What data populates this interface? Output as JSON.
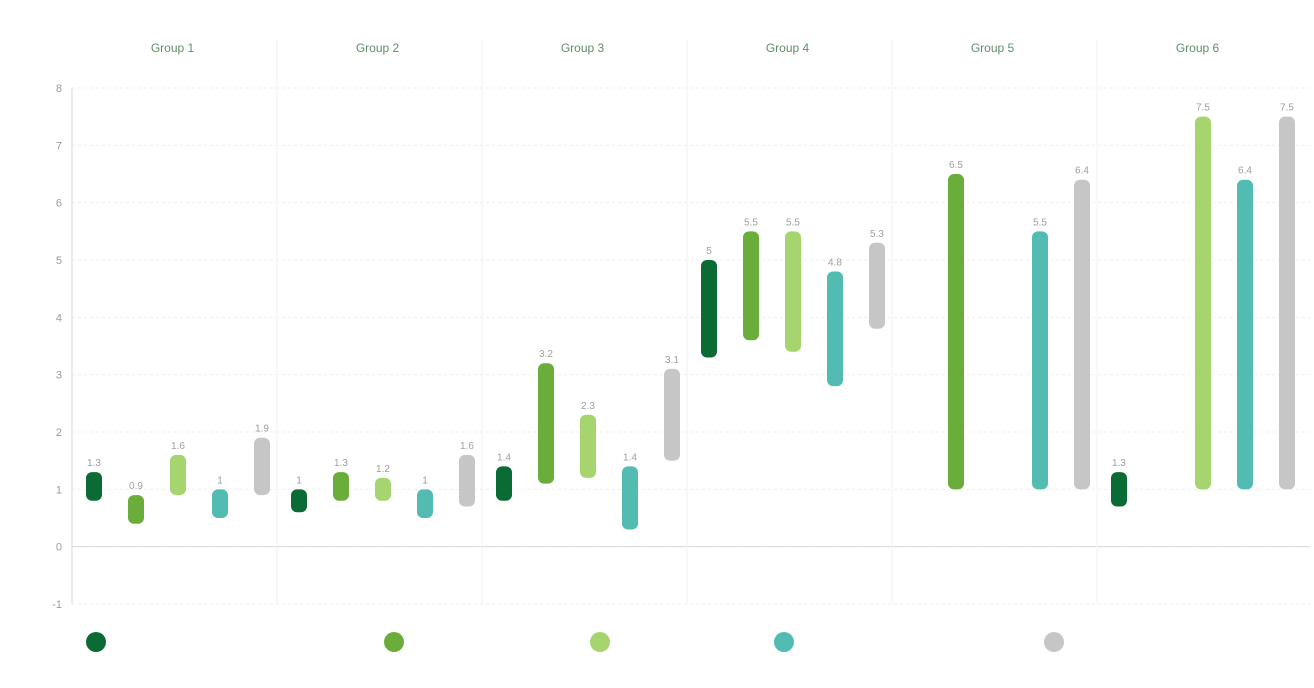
{
  "chart_data": {
    "type": "bar",
    "title": "",
    "xlabel": "",
    "ylabel": "",
    "ylim": [
      -1,
      8
    ],
    "yticks": [
      -1,
      0,
      1,
      2,
      3,
      4,
      5,
      6,
      7,
      8
    ],
    "grid": true,
    "legend_position": "bottom",
    "categories": [
      "Group 1",
      "Group 2",
      "Group 3",
      "Group 4",
      "Group 5",
      "Group 6"
    ],
    "series": [
      {
        "name": "",
        "color": "#0b6b35",
        "values": [
          [
            0.8,
            1.3
          ],
          [
            0.6,
            1.0
          ],
          [
            0.8,
            1.4
          ],
          [
            3.3,
            5.0
          ],
          null,
          [
            0.7,
            1.3
          ]
        ]
      },
      {
        "name": "",
        "color": "#6aad3a",
        "values": [
          [
            0.4,
            0.9
          ],
          [
            0.8,
            1.3
          ],
          [
            1.1,
            3.2
          ],
          [
            3.6,
            5.5
          ],
          [
            1.0,
            6.5
          ],
          null
        ]
      },
      {
        "name": "",
        "color": "#a6d46e",
        "values": [
          [
            0.9,
            1.6
          ],
          [
            0.8,
            1.2
          ],
          [
            1.2,
            2.3
          ],
          [
            3.4,
            5.5
          ],
          null,
          [
            1.0,
            7.5
          ]
        ]
      },
      {
        "name": "",
        "color": "#53bcb2",
        "values": [
          [
            0.5,
            1.0
          ],
          [
            0.5,
            1.0
          ],
          [
            0.3,
            1.4
          ],
          [
            2.8,
            4.8
          ],
          [
            1.0,
            5.5
          ],
          [
            1.0,
            6.4
          ]
        ]
      },
      {
        "name": "",
        "color": "#c6c6c6",
        "values": [
          [
            0.9,
            1.9
          ],
          [
            0.7,
            1.6
          ],
          [
            1.5,
            3.1
          ],
          [
            3.8,
            5.3
          ],
          [
            1.0,
            6.4
          ],
          [
            1.0,
            7.5
          ]
        ]
      }
    ]
  }
}
